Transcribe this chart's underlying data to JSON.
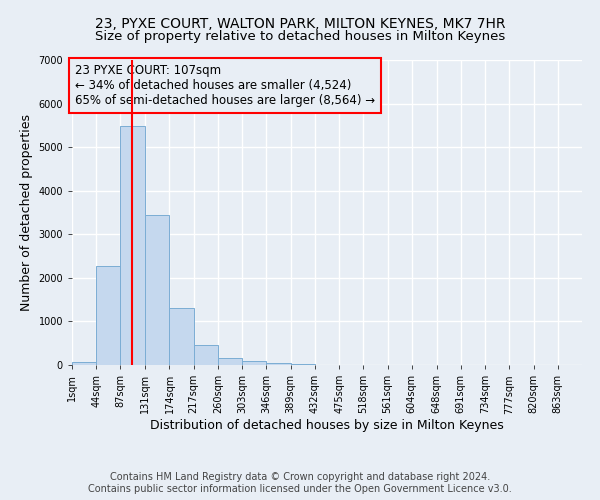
{
  "title": "23, PYXE COURT, WALTON PARK, MILTON KEYNES, MK7 7HR",
  "subtitle": "Size of property relative to detached houses in Milton Keynes",
  "xlabel": "Distribution of detached houses by size in Milton Keynes",
  "ylabel": "Number of detached properties",
  "footer_line1": "Contains HM Land Registry data © Crown copyright and database right 2024.",
  "footer_line2": "Contains public sector information licensed under the Open Government Licence v3.0.",
  "annotation_line1": "23 PYXE COURT: 107sqm",
  "annotation_line2": "← 34% of detached houses are smaller (4,524)",
  "annotation_line3": "65% of semi-detached houses are larger (8,564) →",
  "property_size_sqm": 107,
  "bar_values": [
    75,
    2280,
    5480,
    3450,
    1310,
    470,
    160,
    90,
    55,
    30,
    10,
    5,
    3,
    2,
    1,
    1,
    1,
    0,
    0,
    0
  ],
  "bin_labels": [
    "1sqm",
    "44sqm",
    "87sqm",
    "131sqm",
    "174sqm",
    "217sqm",
    "260sqm",
    "303sqm",
    "346sqm",
    "389sqm",
    "432sqm",
    "475sqm",
    "518sqm",
    "561sqm",
    "604sqm",
    "648sqm",
    "691sqm",
    "734sqm",
    "777sqm",
    "820sqm",
    "863sqm"
  ],
  "bin_edges": [
    1,
    44,
    87,
    131,
    174,
    217,
    260,
    303,
    346,
    389,
    432,
    475,
    518,
    561,
    604,
    648,
    691,
    734,
    777,
    820,
    863
  ],
  "bar_color": "#c5d8ee",
  "bar_edge_color": "#7badd4",
  "vline_color": "red",
  "vline_x": 107,
  "ylim": [
    0,
    7000
  ],
  "yticks": [
    0,
    1000,
    2000,
    3000,
    4000,
    5000,
    6000,
    7000
  ],
  "background_color": "#e8eef5",
  "axes_background": "#e8eef5",
  "grid_color": "#ffffff",
  "annotation_box_facecolor": "#e8eef5",
  "annotation_box_edgecolor": "red",
  "title_fontsize": 10,
  "subtitle_fontsize": 9.5,
  "label_fontsize": 9,
  "tick_fontsize": 7,
  "footer_fontsize": 7,
  "annotation_fontsize": 8.5
}
